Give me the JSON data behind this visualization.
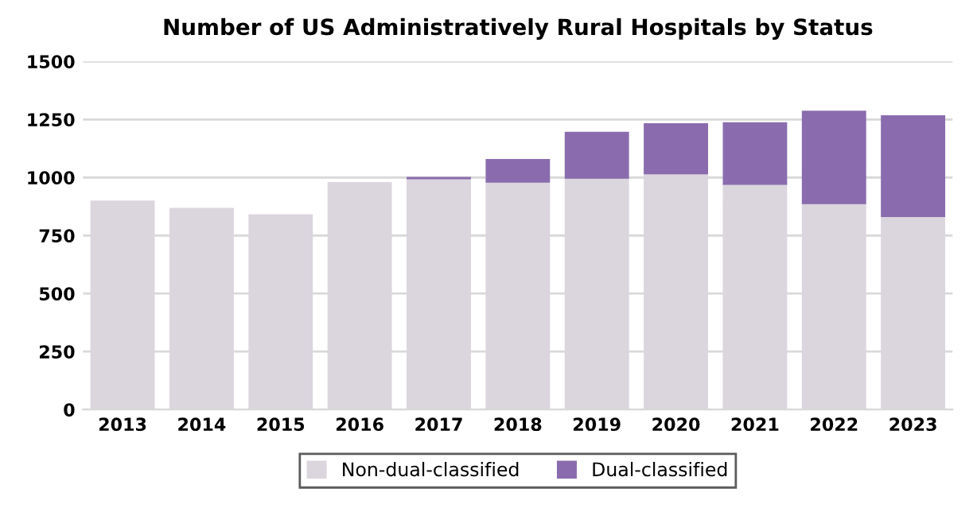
{
  "chart_data": {
    "type": "bar",
    "title": "Number of US Administratively Rural Hospitals by Status",
    "stacked": true,
    "categories": [
      "2013",
      "2014",
      "2015",
      "2016",
      "2017",
      "2018",
      "2019",
      "2020",
      "2021",
      "2022",
      "2023"
    ],
    "series": [
      {
        "name": "Non-dual-classified",
        "color": "#dbd5de",
        "values": [
          898,
          867,
          839,
          978,
          995,
          980,
          997,
          1016,
          971,
          888,
          832
        ]
      },
      {
        "name": "Dual-classified",
        "color": "#8a6cae",
        "values": [
          null,
          null,
          null,
          null,
          5,
          97,
          198,
          215,
          265,
          397,
          434
        ]
      }
    ],
    "ylim": [
      0,
      1500
    ],
    "yticks": [
      0,
      250,
      500,
      750,
      1000,
      1250,
      1500
    ],
    "grid": "y",
    "legend": "bottom"
  }
}
